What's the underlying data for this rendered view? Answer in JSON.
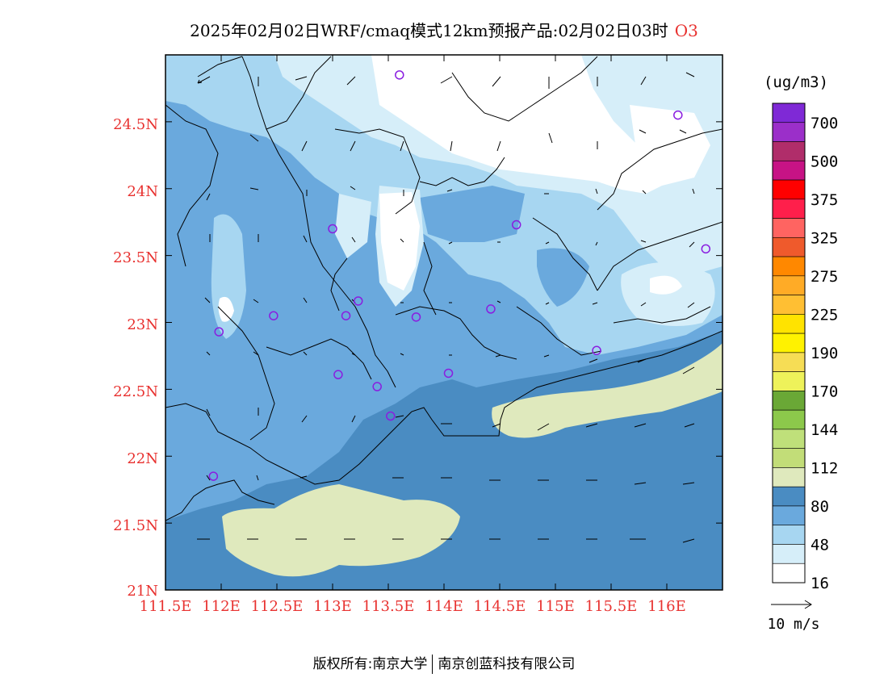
{
  "title": {
    "main": "2025年02月02日WRF/cmaq模式12km预报产品:02月02日03时",
    "pollutant": "O3"
  },
  "map": {
    "lat_labels": [
      "24.5N",
      "24N",
      "23.5N",
      "23N",
      "22.5N",
      "22N",
      "21.5N",
      "21N"
    ],
    "lon_labels": [
      "111.5E",
      "112E",
      "112.5E",
      "113E",
      "113.5E",
      "114E",
      "114.5E",
      "115E",
      "115.5E",
      "116E"
    ],
    "lat_range": [
      21,
      25
    ],
    "lon_range": [
      111.5,
      116.5
    ],
    "label_color": "#e8312f",
    "contour_colors": {
      "0-16": "#ffffff",
      "16-48": "#d6eef9",
      "48-64": "#a7d6f1",
      "64-80": "#6aa9dd",
      "80-112": "#4a8cc2",
      "112-128": "#dfe9bd"
    },
    "stations": [
      {
        "lon": 113.6,
        "lat": 24.85
      },
      {
        "lon": 116.1,
        "lat": 24.55
      },
      {
        "lon": 113.0,
        "lat": 23.7
      },
      {
        "lon": 114.65,
        "lat": 23.73
      },
      {
        "lon": 116.35,
        "lat": 23.55
      },
      {
        "lon": 113.23,
        "lat": 23.16
      },
      {
        "lon": 112.47,
        "lat": 23.05
      },
      {
        "lon": 113.12,
        "lat": 23.05
      },
      {
        "lon": 113.75,
        "lat": 23.04
      },
      {
        "lon": 114.42,
        "lat": 23.1
      },
      {
        "lon": 111.98,
        "lat": 22.93
      },
      {
        "lon": 115.37,
        "lat": 22.79
      },
      {
        "lon": 113.05,
        "lat": 22.61
      },
      {
        "lon": 114.04,
        "lat": 22.62
      },
      {
        "lon": 113.4,
        "lat": 22.52
      },
      {
        "lon": 113.52,
        "lat": 22.3
      },
      {
        "lon": 111.93,
        "lat": 21.85
      }
    ],
    "wind_scale_label": "10 m/s"
  },
  "legend": {
    "unit": "(ug/m3)",
    "levels": [
      "700",
      "500",
      "375",
      "325",
      "275",
      "225",
      "190",
      "170",
      "144",
      "112",
      "80",
      "48",
      "16"
    ],
    "colors": [
      "#7f29d6",
      "#9b2fc9",
      "#b02d6a",
      "#c71385",
      "#ff0000",
      "#ff1f4b",
      "#ff6461",
      "#ef5a2c",
      "#ff8800",
      "#ffab26",
      "#ffbf33",
      "#ffe300",
      "#fff200",
      "#f6dd55",
      "#eef25a",
      "#6aa836",
      "#8cc84b",
      "#bfe07a",
      "#c2dd78",
      "#dfe9bd",
      "#4a8cc2",
      "#6aa9dd",
      "#a7d6f1",
      "#d6eef9",
      "#ffffff"
    ]
  },
  "footer": {
    "owner_label": "版权所有:",
    "org1": "南京大学",
    "org2": "南京创蓝科技有限公司"
  }
}
